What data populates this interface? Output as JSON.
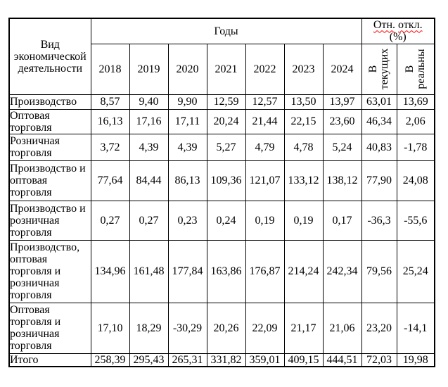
{
  "table": {
    "header": {
      "activity_label": "Вид экономической деятельности",
      "years_group_label": "Годы",
      "deviation_word1": "Отн.",
      "deviation_word2": "откл.",
      "deviation_percent": "(%)",
      "years": [
        "2018",
        "2019",
        "2020",
        "2021",
        "2022",
        "2023",
        "2024"
      ],
      "deviation_columns": [
        {
          "line1": "В",
          "line2": "текущих"
        },
        {
          "line1": "В",
          "line2": "реальны"
        }
      ]
    },
    "rows": [
      {
        "label": "Производство",
        "values": [
          "8,57",
          "9,40",
          "9,90",
          "12,59",
          "12,57",
          "13,50",
          "13,97",
          "63,01",
          "13,69"
        ]
      },
      {
        "label": "Оптовая торговля",
        "values": [
          "16,13",
          "17,16",
          "17,11",
          "20,24",
          "21,44",
          "22,15",
          "23,60",
          "46,34",
          "2,06"
        ]
      },
      {
        "label": "Розничная торговля",
        "values": [
          "3,72",
          "4,39",
          "4,39",
          "5,27",
          "4,79",
          "4,78",
          "5,24",
          "40,83",
          "-1,78"
        ]
      },
      {
        "label": "Производство и оптовая торговля",
        "values": [
          "77,64",
          "84,44",
          "86,13",
          "109,36",
          "121,07",
          "133,12",
          "138,12",
          "77,90",
          "24,08"
        ]
      },
      {
        "label": "Производство и розничная торговля",
        "values": [
          "0,27",
          "0,27",
          "0,23",
          "0,24",
          "0,19",
          "0,19",
          "0,17",
          "-36,3",
          "-55,6"
        ]
      },
      {
        "label": "Производство, оптовая торговля и розничная торговля",
        "values": [
          "134,96",
          "161,48",
          "177,84",
          "163,86",
          "176,87",
          "214,24",
          "242,34",
          "79,56",
          "25,24"
        ]
      },
      {
        "label": "Оптовая торговля и розничная торговля",
        "values": [
          "17,10",
          "18,29",
          "-30,29",
          "20,26",
          "22,09",
          "21,17",
          "21,06",
          "23,20",
          "-14,1"
        ]
      },
      {
        "label": "Итого",
        "values": [
          "258,39",
          "295,43",
          "265,31",
          "331,82",
          "359,01",
          "409,15",
          "444,51",
          "72,03",
          "19,98"
        ]
      }
    ],
    "colors": {
      "border": "#000000",
      "text": "#000000",
      "spellcheck_underline": "#ff0000",
      "background": "#ffffff"
    }
  }
}
